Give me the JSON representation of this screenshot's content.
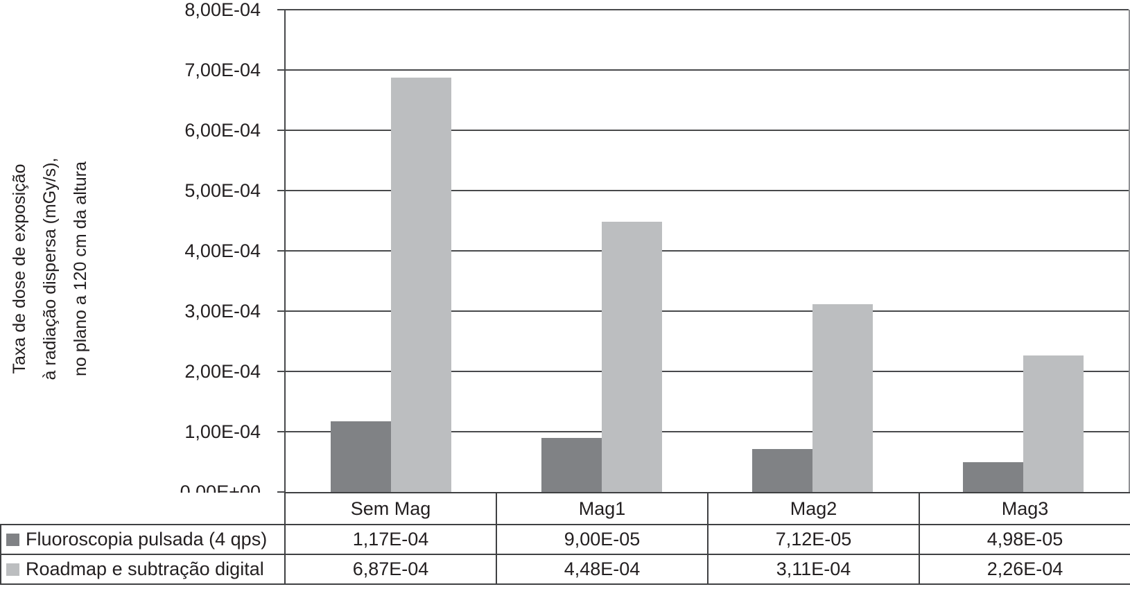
{
  "chart_data": {
    "type": "bar",
    "title": "",
    "ylabel_lines": [
      "Taxa de dose de exposição",
      "à radiação dispersa (mGy/s),",
      "no plano a 120 cm da altura"
    ],
    "xlabel": "",
    "categories": [
      "Sem Mag",
      "Mag1",
      "Mag2",
      "Mag3"
    ],
    "series": [
      {
        "name": "Fluoroscopia pulsada (4 qps)",
        "color": "#808285",
        "values": [
          0.000117,
          9e-05,
          7.12e-05,
          4.98e-05
        ],
        "labels": [
          "1,17E-04",
          "9,00E-05",
          "7,12E-05",
          "4,98E-05"
        ]
      },
      {
        "name": "Roadmap e subtração digital",
        "color": "#bcbec0",
        "values": [
          0.000687,
          0.000448,
          0.000311,
          0.000226
        ],
        "labels": [
          "6,87E-04",
          "4,48E-04",
          "3,11E-04",
          "2,26E-04"
        ]
      }
    ],
    "y_ticks": [
      "0,00E+00",
      "1,00E-04",
      "2,00E-04",
      "3,00E-04",
      "4,00E-04",
      "5,00E-04",
      "6,00E-04",
      "7,00E-04",
      "8,00E-04"
    ],
    "ylim": [
      0,
      0.0008
    ],
    "grid": true,
    "legend_position": "table-left",
    "colors": {
      "line": "#48494b",
      "table_border": "#3f4042",
      "text": "#231f20",
      "background": "#ffffff"
    }
  }
}
